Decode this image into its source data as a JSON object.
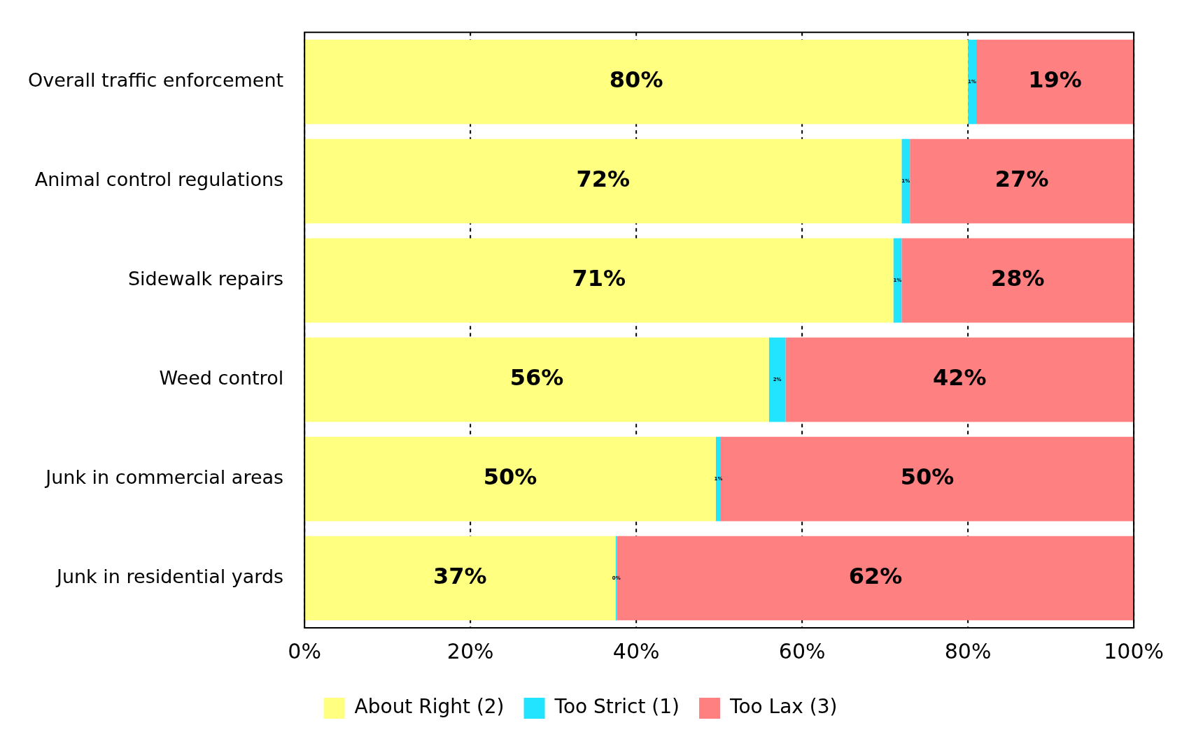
{
  "chart_data": {
    "type": "bar",
    "orientation": "horizontal",
    "stacked": true,
    "categories": [
      "Overall traffic enforcement",
      "Animal control regulations",
      "Sidewalk repairs",
      "Weed control",
      "Junk in commercial areas",
      "Junk in residential yards"
    ],
    "series": [
      {
        "name": "About Right (2)",
        "color": "#ffff80",
        "values": [
          80,
          72,
          71,
          56,
          49.6,
          37.5
        ],
        "value_labels": [
          "80%",
          "72%",
          "71%",
          "56%",
          "50%",
          "37%"
        ]
      },
      {
        "name": "Too Strict (1)",
        "color": "#22e4ff",
        "values": [
          1,
          1,
          1,
          2,
          0.6,
          0.2
        ],
        "value_labels": [
          "1%",
          "1%",
          "1%",
          "2%",
          "1%",
          "0%"
        ]
      },
      {
        "name": "Too Lax (3)",
        "color": "#ff8080",
        "values": [
          19,
          27,
          28,
          42,
          49.8,
          62.3
        ],
        "value_labels": [
          "19%",
          "27%",
          "28%",
          "42%",
          "50%",
          "62%"
        ]
      }
    ],
    "xlim": [
      0,
      100
    ],
    "xticks": [
      {
        "value": 0,
        "label": "0%"
      },
      {
        "value": 20,
        "label": "20%"
      },
      {
        "value": 40,
        "label": "40%"
      },
      {
        "value": 60,
        "label": "60%"
      },
      {
        "value": 80,
        "label": "80%"
      },
      {
        "value": 100,
        "label": "100%"
      }
    ],
    "grid": "x",
    "legend": "bottom"
  }
}
